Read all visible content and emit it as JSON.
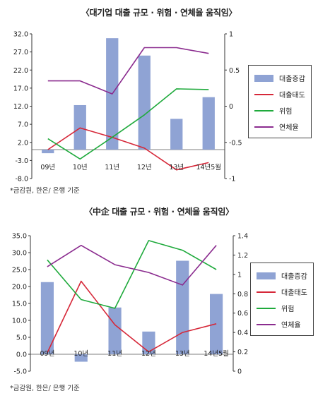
{
  "chart_data": [
    {
      "type": "bar",
      "title": "〈대기업 대출 규모 · 위험 · 연체율 움직임〉",
      "source": "*금감원, 한은/ 은행 기준",
      "categories": [
        "09년",
        "10년",
        "11년",
        "12년",
        "13년",
        "14년5월"
      ],
      "left_axis": {
        "ylim": [
          -8.0,
          32.0
        ],
        "ticks": [
          "32.0",
          "27.0",
          "22.0",
          "17.0",
          "12.0",
          "7.0",
          "2.0",
          "-3.0",
          "-8.0"
        ]
      },
      "right_axis": {
        "ylim": [
          -1,
          1
        ],
        "ticks": [
          "1",
          "0.5",
          "0",
          "-0.5",
          "-1"
        ]
      },
      "legend": {
        "position": "right",
        "items": [
          {
            "label": "대출증감",
            "color": "#8fa3d4",
            "kind": "bar"
          },
          {
            "label": "대출태도",
            "color": "#d62839",
            "kind": "line"
          },
          {
            "label": "위험",
            "color": "#1faa3c",
            "kind": "line"
          },
          {
            "label": "연체율",
            "color": "#8b2c8f",
            "kind": "line"
          }
        ]
      },
      "series": [
        {
          "name": "대출증감",
          "type": "bar",
          "axis": "left",
          "color": "#8fa3d4",
          "values": [
            -1.0,
            12.3,
            30.8,
            26.0,
            8.5,
            14.5
          ]
        },
        {
          "name": "대출태도",
          "type": "line",
          "axis": "right",
          "color": "#d62839",
          "values": [
            -0.6,
            -0.3,
            -0.43,
            -0.58,
            -0.88,
            -0.78
          ]
        },
        {
          "name": "위험",
          "type": "line",
          "axis": "right",
          "color": "#1faa3c",
          "values": [
            -0.45,
            -0.73,
            -0.43,
            -0.12,
            0.24,
            0.23
          ]
        },
        {
          "name": "연체율",
          "type": "line",
          "axis": "right",
          "color": "#8b2c8f",
          "values": [
            0.35,
            0.35,
            0.17,
            0.81,
            0.81,
            0.73
          ]
        }
      ]
    },
    {
      "type": "bar",
      "title": "〈中企 대출 규모 · 위험 · 연체율 움직임〉",
      "source": "*금감원, 한은/ 은행 기준",
      "categories": [
        "09년",
        "10년",
        "11년",
        "12년",
        "13년",
        "14년5월"
      ],
      "left_axis": {
        "ylim": [
          -5.0,
          35.0
        ],
        "ticks": [
          "35.0",
          "30.0",
          "25.0",
          "20.0",
          "15.0",
          "10.0",
          "5.0",
          "0.0",
          "-5.0"
        ]
      },
      "right_axis": {
        "ylim": [
          0,
          1.4
        ],
        "ticks": [
          "1.4",
          "1.2",
          "1",
          "0.8",
          "0.6",
          "0.4",
          "0.2",
          "0"
        ]
      },
      "legend": {
        "position": "right",
        "items": [
          {
            "label": "대출증감",
            "color": "#8fa3d4",
            "kind": "bar"
          },
          {
            "label": "대출태도",
            "color": "#d62839",
            "kind": "line"
          },
          {
            "label": "위험",
            "color": "#1faa3c",
            "kind": "line"
          },
          {
            "label": "연체율",
            "color": "#8b2c8f",
            "kind": "line"
          }
        ]
      },
      "series": [
        {
          "name": "대출증감",
          "type": "bar",
          "axis": "left",
          "color": "#8fa3d4",
          "values": [
            21.3,
            -2.2,
            13.8,
            6.7,
            27.6,
            17.8
          ]
        },
        {
          "name": "대출태도",
          "type": "line",
          "axis": "right",
          "color": "#d62839",
          "values": [
            0.19,
            0.93,
            0.48,
            0.2,
            0.4,
            0.49
          ]
        },
        {
          "name": "위험",
          "type": "line",
          "axis": "right",
          "color": "#1faa3c",
          "values": [
            1.15,
            0.74,
            0.65,
            1.35,
            1.25,
            1.05
          ]
        },
        {
          "name": "연체율",
          "type": "line",
          "axis": "right",
          "color": "#8b2c8f",
          "values": [
            1.08,
            1.3,
            1.1,
            1.02,
            0.89,
            1.3
          ]
        }
      ]
    }
  ]
}
